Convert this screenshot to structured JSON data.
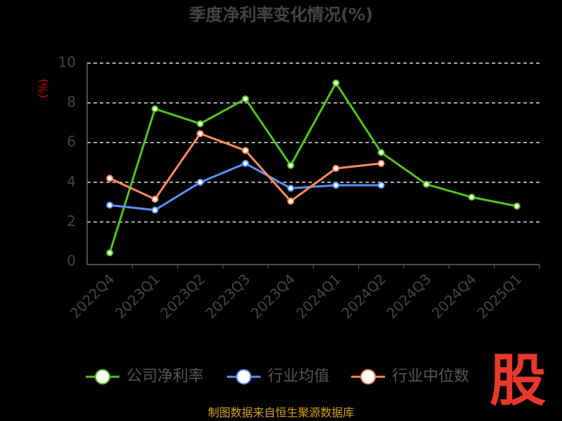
{
  "chart_data": {
    "type": "line",
    "title": "季度净利率变化情况(%)",
    "y_label": "(%)",
    "categories": [
      "2022Q4",
      "2023Q1",
      "2023Q2",
      "2023Q3",
      "2023Q4",
      "2024Q1",
      "2024Q2",
      "2024Q3",
      "2024Q4",
      "2025Q1"
    ],
    "series": [
      {
        "name": "公司净利率",
        "color": "#52c41a",
        "values": [
          0.45,
          7.7,
          6.95,
          8.2,
          4.85,
          9.0,
          5.5,
          3.9,
          3.25,
          2.8
        ]
      },
      {
        "name": "行业均值",
        "color": "#5b8ff9",
        "values": [
          2.85,
          2.6,
          4.0,
          4.95,
          3.7,
          3.85,
          3.85,
          null,
          null,
          null
        ]
      },
      {
        "name": "行业中位数",
        "color": "#ff8c5a",
        "values": [
          4.2,
          3.15,
          6.45,
          5.6,
          3.05,
          4.7,
          4.95,
          null,
          null,
          null
        ]
      }
    ],
    "ylim": [
      0,
      10
    ],
    "yticks": [
      0,
      2,
      4,
      6,
      8,
      10
    ],
    "grid": true,
    "source": "制图数据来自恒生聚源数据库",
    "logo": "股"
  }
}
